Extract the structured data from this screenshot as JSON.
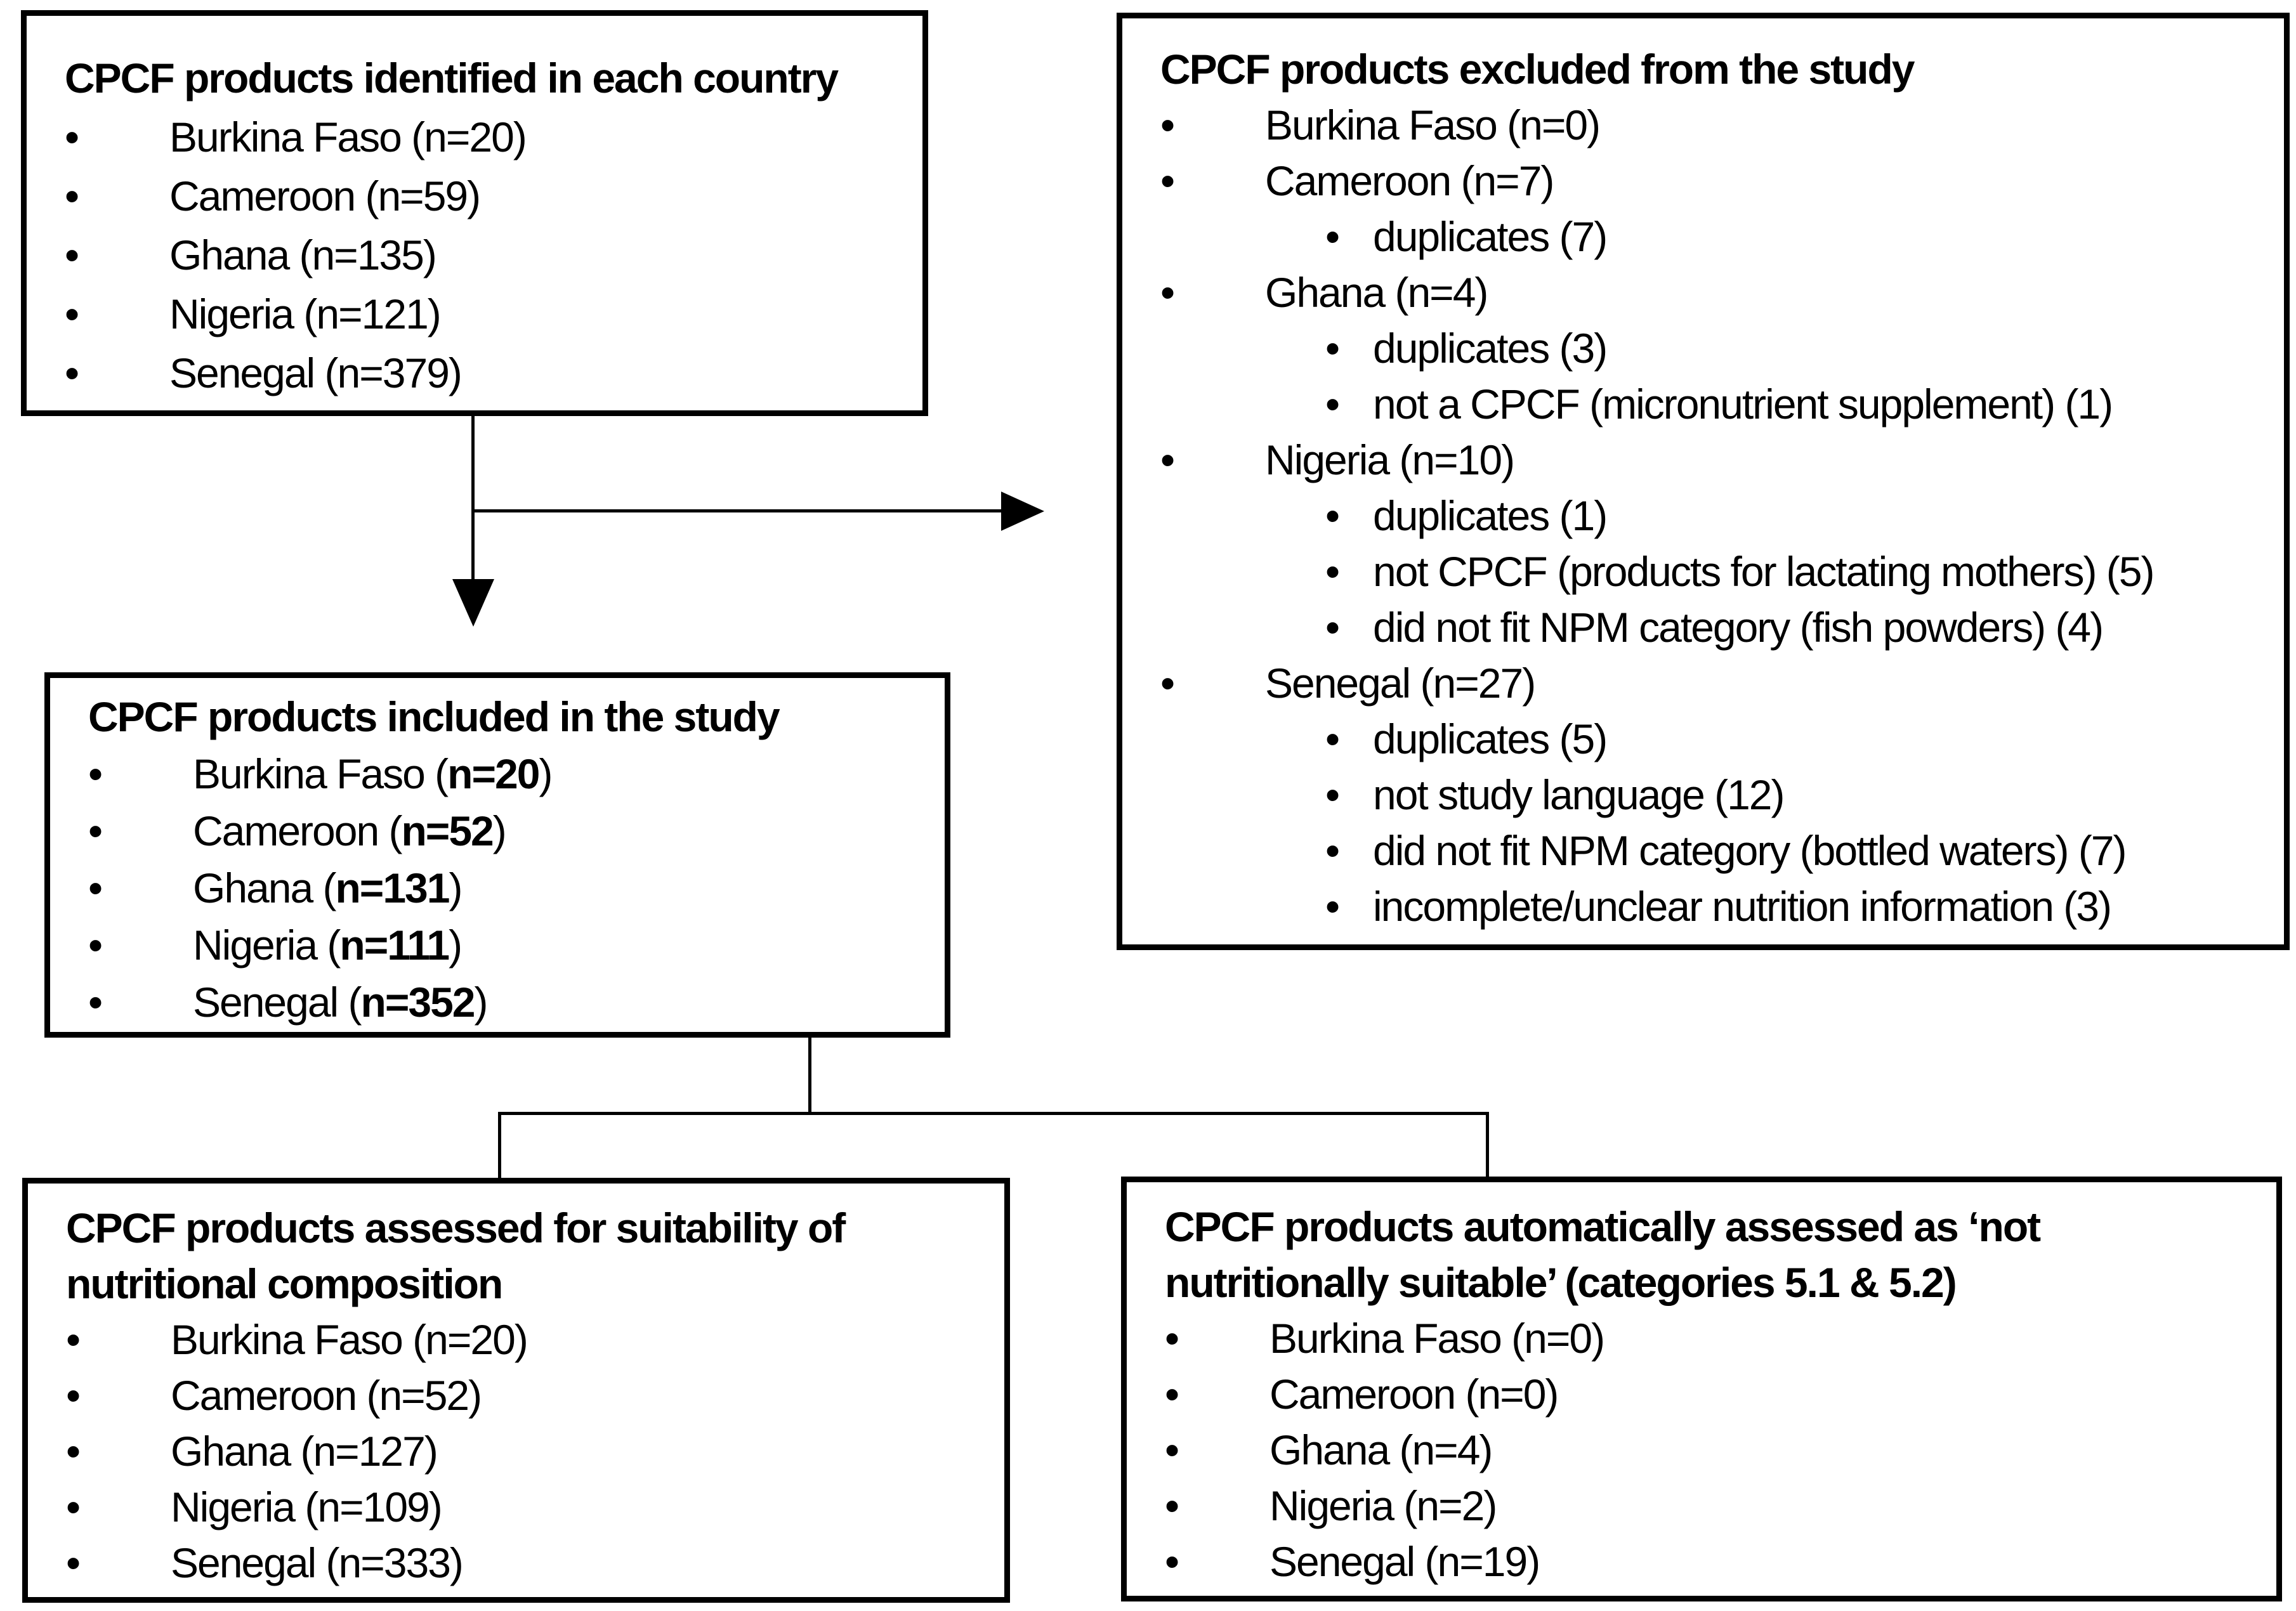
{
  "colors": {
    "background": "#ffffff",
    "border": "#000000",
    "text": "#000000"
  },
  "boxes": {
    "identified": {
      "title": "CPCF products identified in each country",
      "items": [
        {
          "text": "Burkina Faso (n=20)"
        },
        {
          "text": "Cameroon (n=59)"
        },
        {
          "text": "Ghana (n=135)"
        },
        {
          "text": "Nigeria (n=121)"
        },
        {
          "text": "Senegal (n=379)"
        }
      ]
    },
    "excluded": {
      "title": "CPCF products excluded from the study",
      "items": [
        {
          "level": 1,
          "text": "Burkina Faso (n=0)"
        },
        {
          "level": 1,
          "text": "Cameroon (n=7)"
        },
        {
          "level": 2,
          "text": "duplicates (7)"
        },
        {
          "level": 1,
          "text": "Ghana (n=4)"
        },
        {
          "level": 2,
          "text": "duplicates (3)"
        },
        {
          "level": 2,
          "text": "not a CPCF (micronutrient supplement) (1)"
        },
        {
          "level": 1,
          "text": "Nigeria (n=10)"
        },
        {
          "level": 2,
          "text": "duplicates (1)"
        },
        {
          "level": 2,
          "text": "not CPCF (products for lactating mothers) (5)"
        },
        {
          "level": 2,
          "text": "did not fit NPM category (fish powders) (4)"
        },
        {
          "level": 1,
          "text": "Senegal (n=27)"
        },
        {
          "level": 2,
          "text": "duplicates (5)"
        },
        {
          "level": 2,
          "text": "not study language (12)"
        },
        {
          "level": 2,
          "text": "did not fit NPM category (bottled waters) (7)"
        },
        {
          "level": 2,
          "text": "incomplete/unclear nutrition information (3)"
        }
      ]
    },
    "included": {
      "title": "CPCF products included in the study",
      "items": [
        {
          "pre": "Burkina Faso (",
          "bold": "n=20",
          "post": ")"
        },
        {
          "pre": "Cameroon (",
          "bold": "n=52",
          "post": ")"
        },
        {
          "pre": "Ghana (",
          "bold": "n=131",
          "post": ")"
        },
        {
          "pre": "Nigeria (",
          "bold": "n=111",
          "post": ")"
        },
        {
          "pre": "Senegal (",
          "bold": "n=352",
          "post": ")"
        }
      ]
    },
    "assessed": {
      "title": "CPCF products assessed for suitability of nutritional composition",
      "items": [
        {
          "text": "Burkina Faso (n=20)"
        },
        {
          "text": "Cameroon (n=52)"
        },
        {
          "text": "Ghana (n=127)"
        },
        {
          "text": "Nigeria (n=109)"
        },
        {
          "text": "Senegal (n=333)"
        }
      ]
    },
    "not_suitable": {
      "title": "CPCF products automatically assessed as ‘not nutritionally suitable’ (categories 5.1 & 5.2)",
      "items": [
        {
          "text": "Burkina Faso (n=0)"
        },
        {
          "text": "Cameroon (n=0)"
        },
        {
          "text": "Ghana (n=4)"
        },
        {
          "text": "Nigeria (n=2)"
        },
        {
          "text": "Senegal (n=19)"
        }
      ]
    }
  }
}
